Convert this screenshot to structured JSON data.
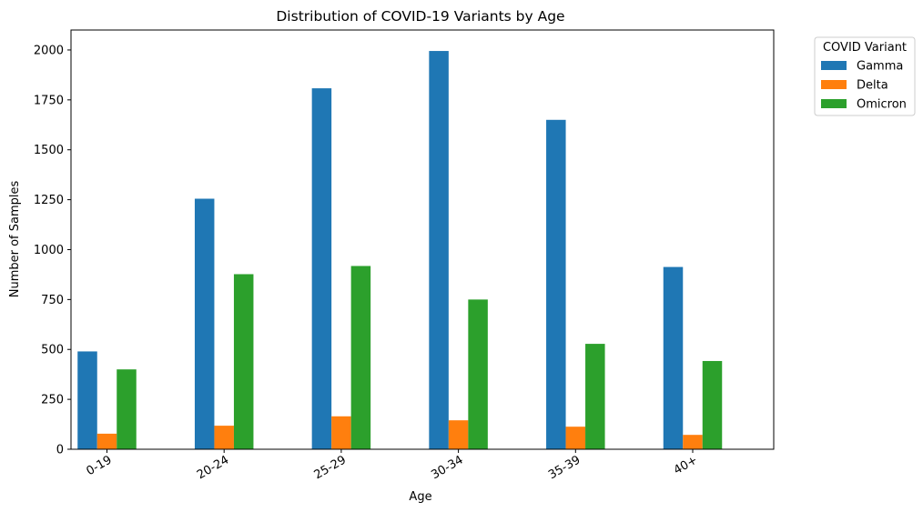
{
  "chart_data": {
    "type": "bar",
    "title": "Distribution of COVID-19 Variants by Age",
    "xlabel": "Age",
    "ylabel": "Number of Samples",
    "categories": [
      "0-19",
      "20-24",
      "25-29",
      "30-34",
      "35-39",
      "40+"
    ],
    "series": [
      {
        "name": "Gamma",
        "color": "#1f77b4",
        "values": [
          490,
          1255,
          1808,
          1995,
          1650,
          913
        ]
      },
      {
        "name": "Delta",
        "color": "#ff7f0e",
        "values": [
          78,
          118,
          165,
          145,
          113,
          72
        ]
      },
      {
        "name": "Omicron",
        "color": "#2ca02c",
        "values": [
          400,
          877,
          918,
          750,
          528,
          442
        ]
      }
    ],
    "ylim": [
      0,
      2100
    ],
    "yticks": [
      "0",
      "250",
      "500",
      "750",
      "1000",
      "1250",
      "1500",
      "1750",
      "2000"
    ],
    "legend": {
      "title": "COVID Variant",
      "placement": "outside-top-right"
    },
    "grid": false
  }
}
